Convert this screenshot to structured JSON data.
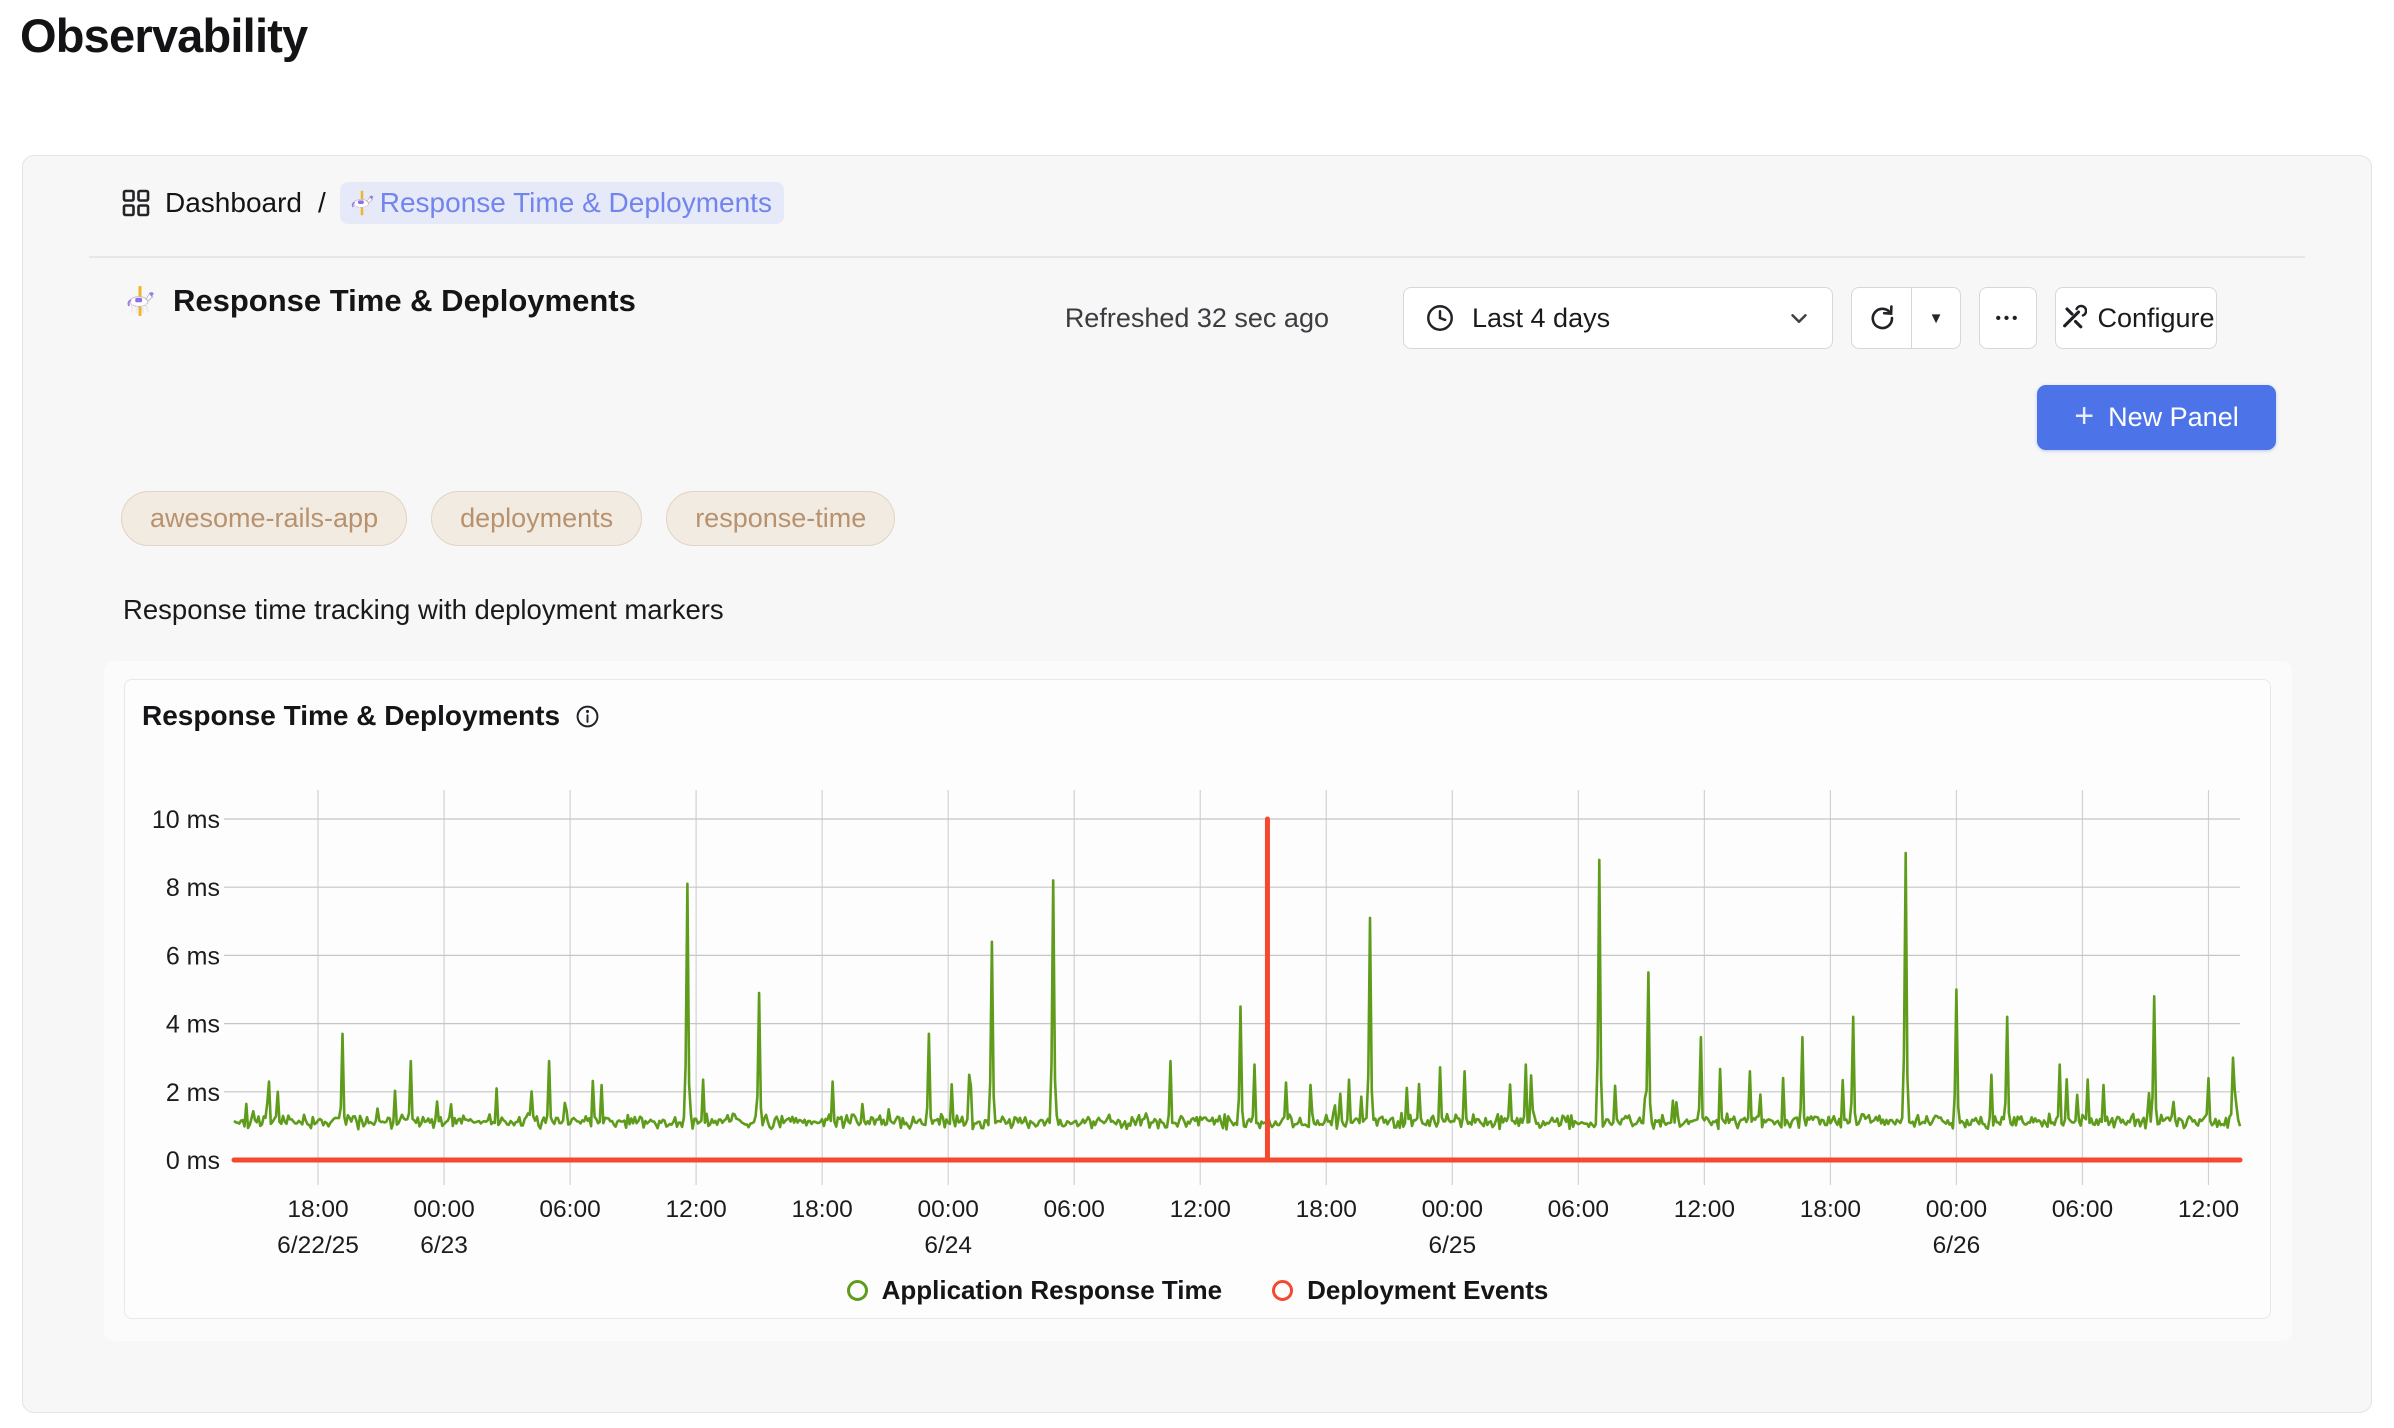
{
  "page": {
    "title": "Observability"
  },
  "breadcrumb": {
    "section": "Dashboard",
    "separator": "/",
    "current": "Response Time & Deployments"
  },
  "header": {
    "title": "Response Time & Deployments",
    "refreshed": "Refreshed 32 sec ago",
    "time_range": "Last 4 days",
    "refresh_dropdown_glyph": "▼",
    "ellipsis_label": "•••",
    "configure_label": "Configure",
    "new_panel_plus": "+",
    "new_panel_label": "New Panel"
  },
  "tags": [
    "awesome-rails-app",
    "deployments",
    "response-time"
  ],
  "description": "Response time tracking with deployment markers",
  "panel": {
    "title": "Response Time & Deployments"
  },
  "colors": {
    "accent_blue": "#4d73e8",
    "link_blue": "#7285ee",
    "response_green": "#5f9c1c",
    "deployment_red": "#f4482f",
    "grid_vertical": "#d2d2d2",
    "grid_horizontal": "#c6c6c6",
    "axis_text": "#1c1c1e"
  },
  "chart_data": {
    "type": "line",
    "title": "Response Time & Deployments",
    "ylabel_unit": "ms",
    "ylim": [
      0,
      10
    ],
    "grid": true,
    "legend_position": "bottom",
    "time_range_label": "Last 4 days",
    "x_start": "6/22/25 14:00",
    "x_end": "6/26/25 13:30",
    "total_hours": 95.5,
    "points_per_hour": 12,
    "y_ticks": [
      {
        "ms": 10,
        "label": "10 ms"
      },
      {
        "ms": 8,
        "label": "8 ms"
      },
      {
        "ms": 6,
        "label": "6 ms"
      },
      {
        "ms": 4,
        "label": "4 ms"
      },
      {
        "ms": 2,
        "label": "2 ms"
      },
      {
        "ms": 0,
        "label": "0 ms"
      }
    ],
    "x_ticks": [
      {
        "offset_h": 4,
        "time": "18:00",
        "date": "6/22/25"
      },
      {
        "offset_h": 10,
        "time": "00:00",
        "date": "6/23"
      },
      {
        "offset_h": 16,
        "time": "06:00"
      },
      {
        "offset_h": 22,
        "time": "12:00"
      },
      {
        "offset_h": 28,
        "time": "18:00"
      },
      {
        "offset_h": 34,
        "time": "00:00",
        "date": "6/24"
      },
      {
        "offset_h": 40,
        "time": "06:00"
      },
      {
        "offset_h": 46,
        "time": "12:00"
      },
      {
        "offset_h": 52,
        "time": "18:00"
      },
      {
        "offset_h": 58,
        "time": "00:00",
        "date": "6/25"
      },
      {
        "offset_h": 64,
        "time": "06:00"
      },
      {
        "offset_h": 70,
        "time": "12:00"
      },
      {
        "offset_h": 76,
        "time": "18:00"
      },
      {
        "offset_h": 82,
        "time": "00:00",
        "date": "6/26"
      },
      {
        "offset_h": 88,
        "time": "06:00"
      },
      {
        "offset_h": 94,
        "time": "12:00"
      }
    ],
    "series": [
      {
        "name": "Application Response Time",
        "type": "line",
        "color": "#5f9c1c",
        "baseline_ms": 1.05,
        "noise_ms": 0.4,
        "minor_spike_prob": 0.04,
        "minor_spike_max_ms": 2.5,
        "major_spikes_h_ms": [
          [
            1.7,
            2.3
          ],
          [
            2.1,
            2.0
          ],
          [
            5.2,
            3.7
          ],
          [
            8.4,
            2.9
          ],
          [
            12.5,
            2.1
          ],
          [
            15.0,
            2.9
          ],
          [
            17.5,
            2.2
          ],
          [
            21.6,
            8.1
          ],
          [
            25.0,
            4.9
          ],
          [
            28.5,
            2.3
          ],
          [
            33.1,
            3.7
          ],
          [
            35.0,
            2.5
          ],
          [
            36.1,
            6.4
          ],
          [
            39.0,
            8.2
          ],
          [
            44.6,
            2.9
          ],
          [
            47.9,
            4.5
          ],
          [
            48.6,
            2.8
          ],
          [
            54.1,
            7.1
          ],
          [
            58.6,
            2.6
          ],
          [
            61.5,
            2.8
          ],
          [
            65.0,
            8.8
          ],
          [
            67.3,
            5.5
          ],
          [
            69.8,
            3.6
          ],
          [
            72.2,
            2.6
          ],
          [
            74.7,
            3.6
          ],
          [
            77.1,
            4.2
          ],
          [
            79.6,
            9.0
          ],
          [
            82.0,
            5.0
          ],
          [
            83.7,
            2.5
          ],
          [
            84.4,
            4.2
          ],
          [
            86.9,
            2.8
          ],
          [
            89.0,
            2.2
          ],
          [
            91.4,
            4.8
          ],
          [
            94.0,
            2.4
          ],
          [
            95.2,
            3.0
          ]
        ]
      },
      {
        "name": "Deployment Events",
        "type": "event",
        "color": "#f4482f",
        "baseline_ms": 0,
        "events_h_ms": [
          [
            49.2,
            10
          ]
        ]
      }
    ],
    "legend": [
      {
        "label": "Application Response Time",
        "color": "#5f9c1c"
      },
      {
        "label": "Deployment Events",
        "color": "#f4482f"
      }
    ]
  }
}
